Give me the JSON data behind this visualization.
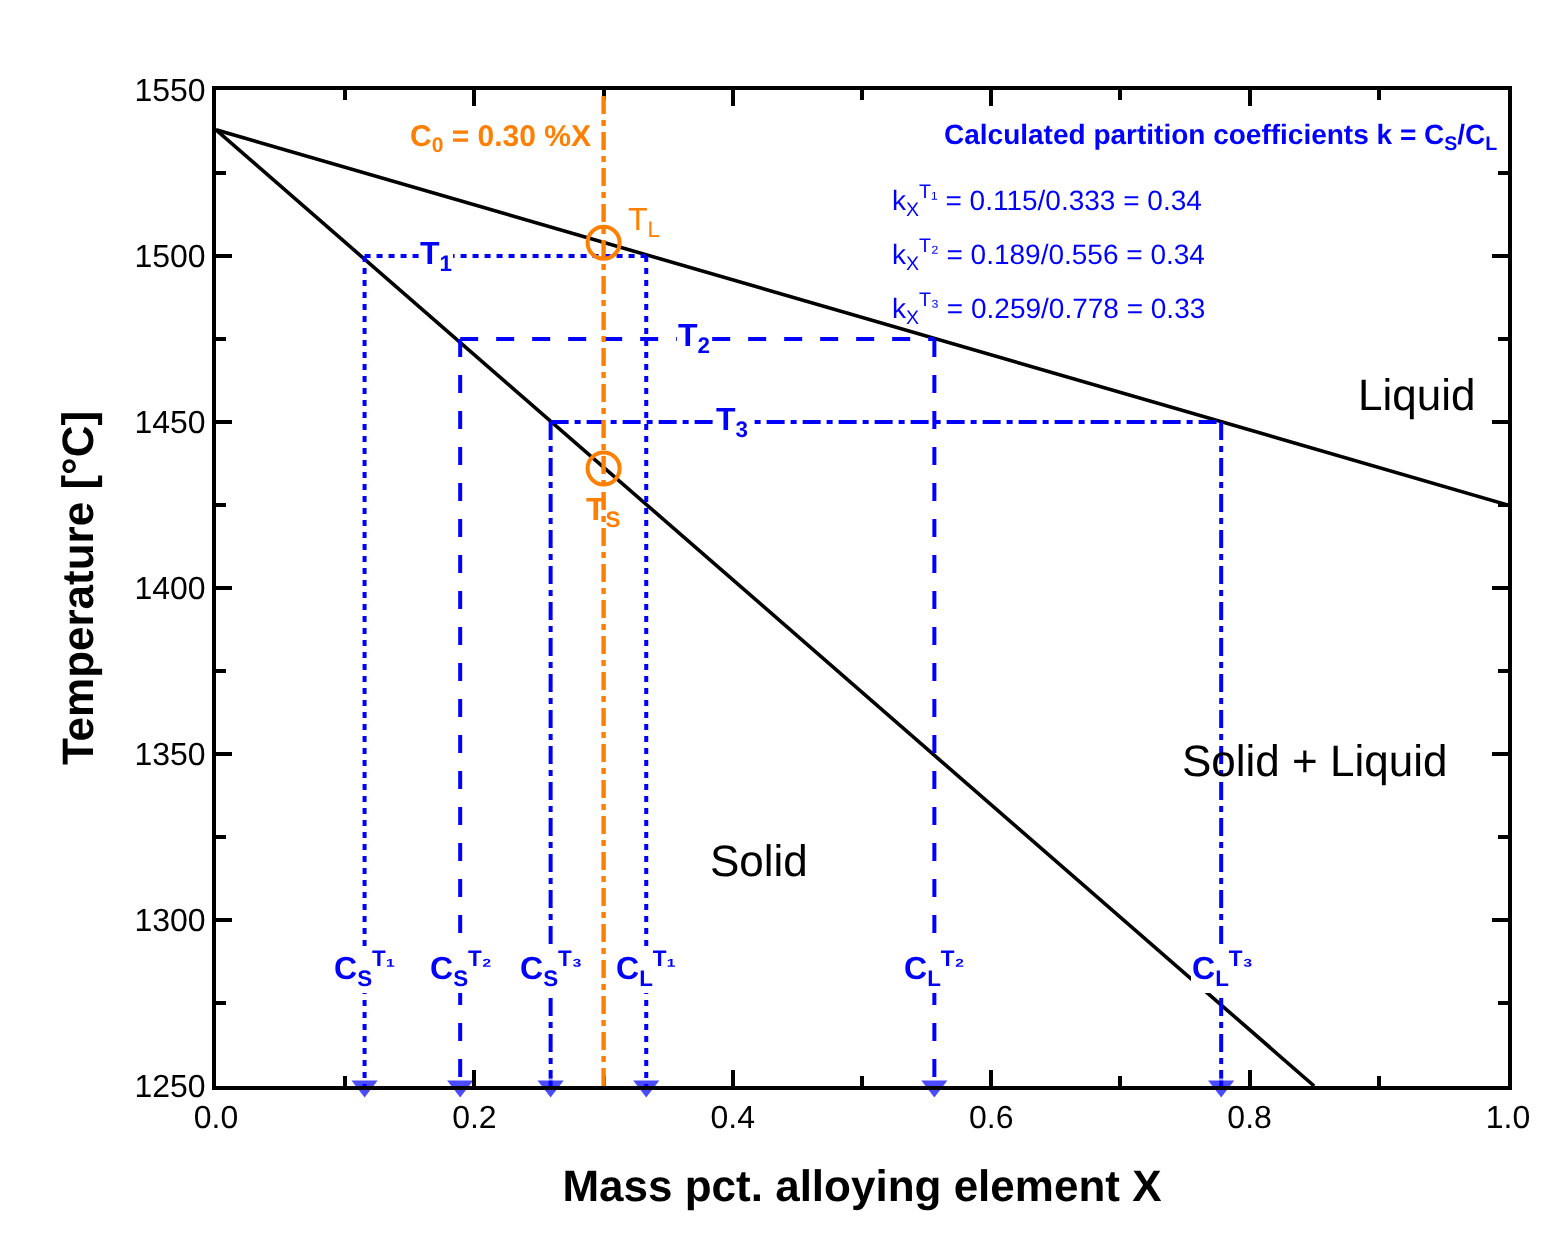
{
  "chart_data": {
    "type": "line",
    "xlabel": "Mass pct. alloying element X",
    "ylabel": "Temperature [°C]",
    "xlim": [
      0,
      1
    ],
    "ylim": [
      1250,
      1550
    ],
    "xticks": [
      {
        "value": 0,
        "label": "0.0"
      },
      {
        "value": 0.1,
        "label": null
      },
      0.2,
      {
        "value": 0.3,
        "label": null
      },
      0.4,
      {
        "value": 0.5,
        "label": null
      },
      0.6,
      {
        "value": 0.7,
        "label": null
      },
      0.8,
      {
        "value": 0.9,
        "label": null
      },
      {
        "value": 1,
        "label": "1.0"
      }
    ],
    "yticks": [
      1250,
      {
        "value": 1275,
        "label": null
      },
      1300,
      {
        "value": 1325,
        "label": null
      },
      1350,
      {
        "value": 1375,
        "label": null
      },
      1400,
      {
        "value": 1425,
        "label": null
      },
      1450,
      {
        "value": 1475,
        "label": null
      },
      1500,
      {
        "value": 1525,
        "label": null
      },
      1550
    ],
    "series": [
      {
        "color": "#000000",
        "line_style": "solid",
        "x": [
          0,
          0.85
        ],
        "values": [
          1538,
          1250
        ]
      },
      {
        "color": "#000000",
        "line_style": "solid",
        "x": [
          0,
          1
        ],
        "values": [
          1538,
          1425
        ]
      },
      {
        "type": "line",
        "color": "#0000ff",
        "line_style": "dotted",
        "x": [
          0.115,
          0.333
        ],
        "values": [
          1500,
          1500
        ]
      },
      {
        "type": "line",
        "color": "#0000ff",
        "line_style": "dashed",
        "x": [
          0.189,
          0.556
        ],
        "values": [
          1475,
          1475
        ]
      },
      {
        "type": "line",
        "color": "#0000ff",
        "line_style": "dashdot",
        "x": [
          0.259,
          0.778
        ],
        "values": [
          1450,
          1450
        ]
      },
      {
        "type": "line",
        "color": "#0000ff",
        "line_style": "dotted",
        "marker": "triangle",
        "x": [
          0.115,
          0.115
        ],
        "values": [
          1500,
          1250
        ]
      },
      {
        "type": "line",
        "color": "#0000ff",
        "line_style": "dotted",
        "marker": "triangle",
        "x": [
          0.333,
          0.333
        ],
        "values": [
          1500,
          1250
        ]
      },
      {
        "type": "line",
        "color": "#0000ff",
        "line_style": "dashed",
        "marker": "triangle",
        "x": [
          0.189,
          0.189
        ],
        "values": [
          1475,
          1250
        ]
      },
      {
        "type": "line",
        "color": "#0000ff",
        "line_style": "dashed",
        "marker": "triangle",
        "x": [
          0.556,
          0.556
        ],
        "values": [
          1475,
          1250
        ]
      },
      {
        "type": "line",
        "color": "#0000ff",
        "line_style": "dashdot",
        "marker": "triangle",
        "x": [
          0.259,
          0.259
        ],
        "values": [
          1450,
          1250
        ]
      },
      {
        "type": "line",
        "color": "#0000ff",
        "line_style": "dashdot",
        "marker": "triangle",
        "x": [
          0.778,
          0.778
        ],
        "values": [
          1450,
          1250
        ]
      },
      {
        "type": "scatter",
        "color": "#ff7f00",
        "marker": "circle",
        "x": [
          0.3,
          0.3
        ],
        "values": [
          1504,
          1436
        ]
      }
    ],
    "ref_lines": [
      {
        "axis": "x",
        "value": 0.3,
        "label": "C$_{0}$ = 0.30 %X",
        "color": "#ff7f00",
        "line_style": "dashdot"
      }
    ],
    "annotations": [
      "Calculated partition coefficients k = C$_{S}$/C$_{L}$",
      "k$_{X}$$^{T₁}$ = 0.115/0.333 = 0.34",
      "k$_{X}$$^{T₂}$ = 0.189/0.556 = 0.34",
      "k$_{X}$$^{T₃}$ = 0.259/0.778 = 0.33",
      "Liquid",
      "Solid + Liquid",
      "Solid",
      {
        "text": "T$_{L}$",
        "x": 0.3,
        "y": 1504
      },
      {
        "text": "T$_{S}$",
        "x": 0.3,
        "y": 1436
      },
      {
        "text": "T$_{1}$",
        "x": 0.17,
        "y": 1500
      },
      {
        "text": "T$_{2}$",
        "x": 0.37,
        "y": 1475
      },
      {
        "text": "T$_{3}$",
        "x": 0.4,
        "y": 1450
      },
      {
        "text": "C$_{S}$$^{T₁}$",
        "x": 0.115,
        "y": 1285
      },
      {
        "text": "C$_{S}$$^{T₂}$",
        "x": 0.189,
        "y": 1285
      },
      {
        "text": "C$_{S}$$^{T₃}$",
        "x": 0.259,
        "y": 1285
      },
      {
        "text": "C$_{L}$$^{T₁}$",
        "x": 0.333,
        "y": 1285
      },
      {
        "text": "C$_{L}$$^{T₂}$",
        "x": 0.556,
        "y": 1285
      },
      {
        "text": "C$_{L}$$^{T₃}$",
        "x": 0.778,
        "y": 1285
      }
    ]
  }
}
